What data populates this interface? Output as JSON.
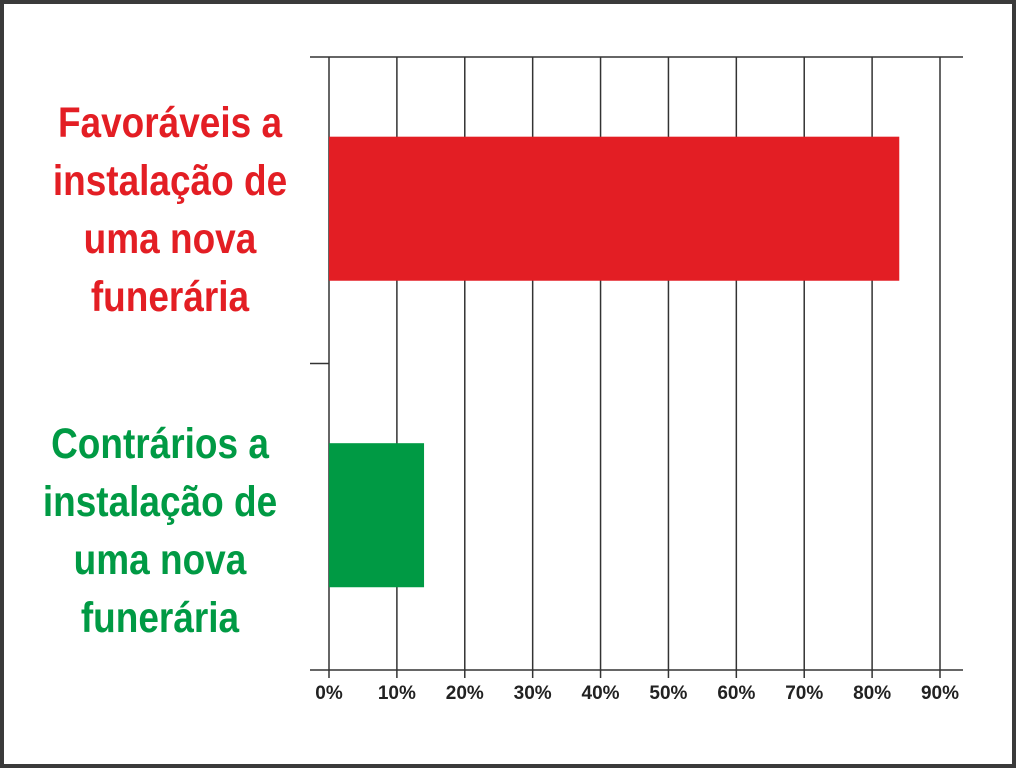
{
  "chart_data": {
    "type": "hbar",
    "categories": [
      "Favoráveis a instalação de uma nova funerária",
      "Contrários a instalação de uma nova funerária"
    ],
    "values": [
      84,
      14
    ],
    "colors": [
      "#e31e24",
      "#009a44"
    ],
    "xlim": [
      0,
      90
    ],
    "xticks": [
      {
        "value": 0,
        "label": "0%"
      },
      {
        "value": 10,
        "label": "10%"
      },
      {
        "value": 20,
        "label": "20%"
      },
      {
        "value": 30,
        "label": "30%"
      },
      {
        "value": 40,
        "label": "40%"
      },
      {
        "value": 50,
        "label": "50%"
      },
      {
        "value": 60,
        "label": "60%"
      },
      {
        "value": 70,
        "label": "70%"
      },
      {
        "value": 80,
        "label": "80%"
      },
      {
        "value": 90,
        "label": "90%"
      }
    ],
    "grid": true
  }
}
